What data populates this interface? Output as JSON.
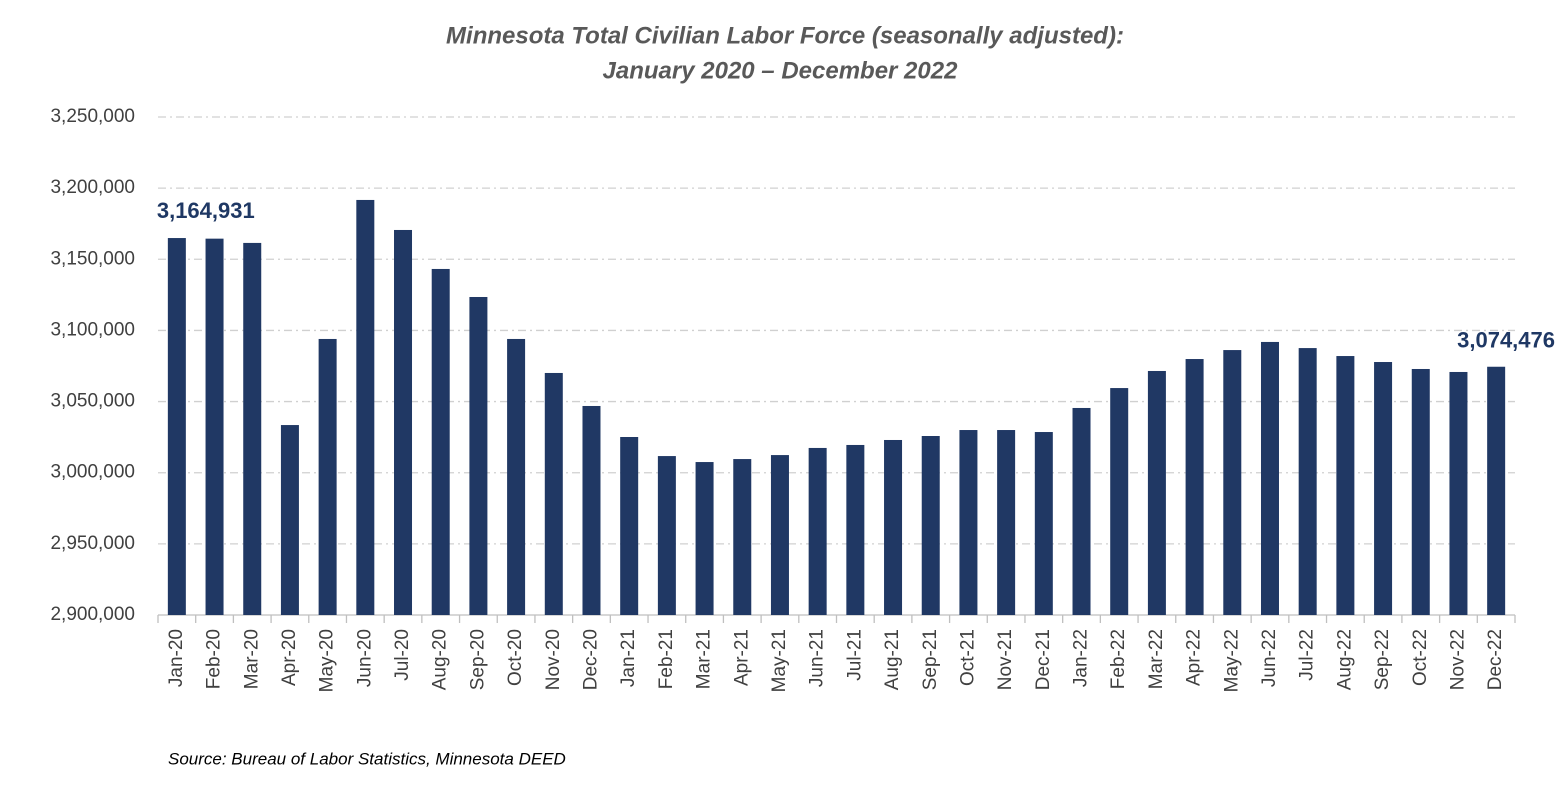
{
  "chart_data": {
    "type": "bar",
    "title": "Minnesota Total Civilian Labor Force (seasonally adjusted):",
    "subtitle": "January 2020 – December 2022",
    "source": "Source: Bureau of Labor Statistics, Minnesota DEED",
    "categories": [
      "Jan-20",
      "Feb-20",
      "Mar-20",
      "Apr-20",
      "May-20",
      "Jun-20",
      "Jul-20",
      "Aug-20",
      "Sep-20",
      "Oct-20",
      "Nov-20",
      "Dec-20",
      "Jan-21",
      "Feb-21",
      "Mar-21",
      "Apr-21",
      "May-21",
      "Jun-21",
      "Jul-21",
      "Aug-21",
      "Sep-21",
      "Oct-21",
      "Nov-21",
      "Dec-21",
      "Jan-22",
      "Feb-22",
      "Mar-22",
      "Apr-22",
      "May-22",
      "Jun-22",
      "Jul-22",
      "Aug-22",
      "Sep-22",
      "Oct-22",
      "Nov-22",
      "Dec-22"
    ],
    "values": [
      3164931,
      3164500,
      3161500,
      3033500,
      3094000,
      3191700,
      3170600,
      3143200,
      3123500,
      3094000,
      3070100,
      3046900,
      3025100,
      3011700,
      3007500,
      3009600,
      3012400,
      3017400,
      3019500,
      3023000,
      3025800,
      3030000,
      3030000,
      3028600,
      3045500,
      3059500,
      3071500,
      3079900,
      3086200,
      3091900,
      3087600,
      3082000,
      3077800,
      3072900,
      3070800,
      3074476
    ],
    "value_labels": [
      "3,164,931",
      null,
      null,
      null,
      null,
      null,
      null,
      null,
      null,
      null,
      null,
      null,
      null,
      null,
      null,
      null,
      null,
      null,
      null,
      null,
      null,
      null,
      null,
      null,
      null,
      null,
      null,
      null,
      null,
      null,
      null,
      null,
      null,
      null,
      null,
      "3,074,476"
    ],
    "color": "#203864",
    "ylim": [
      2900000,
      3250000
    ],
    "yticks": [
      {
        "value": 2900000,
        "label": "2,900,000"
      },
      {
        "value": 2950000,
        "label": "2,950,000"
      },
      {
        "value": 3000000,
        "label": "3,000,000"
      },
      {
        "value": 3050000,
        "label": "3,050,000"
      },
      {
        "value": 3100000,
        "label": "3,100,000"
      },
      {
        "value": 3150000,
        "label": "3,150,000"
      },
      {
        "value": 3200000,
        "label": "3,200,000"
      },
      {
        "value": 3250000,
        "label": "3,250,000"
      }
    ],
    "grid": true
  }
}
